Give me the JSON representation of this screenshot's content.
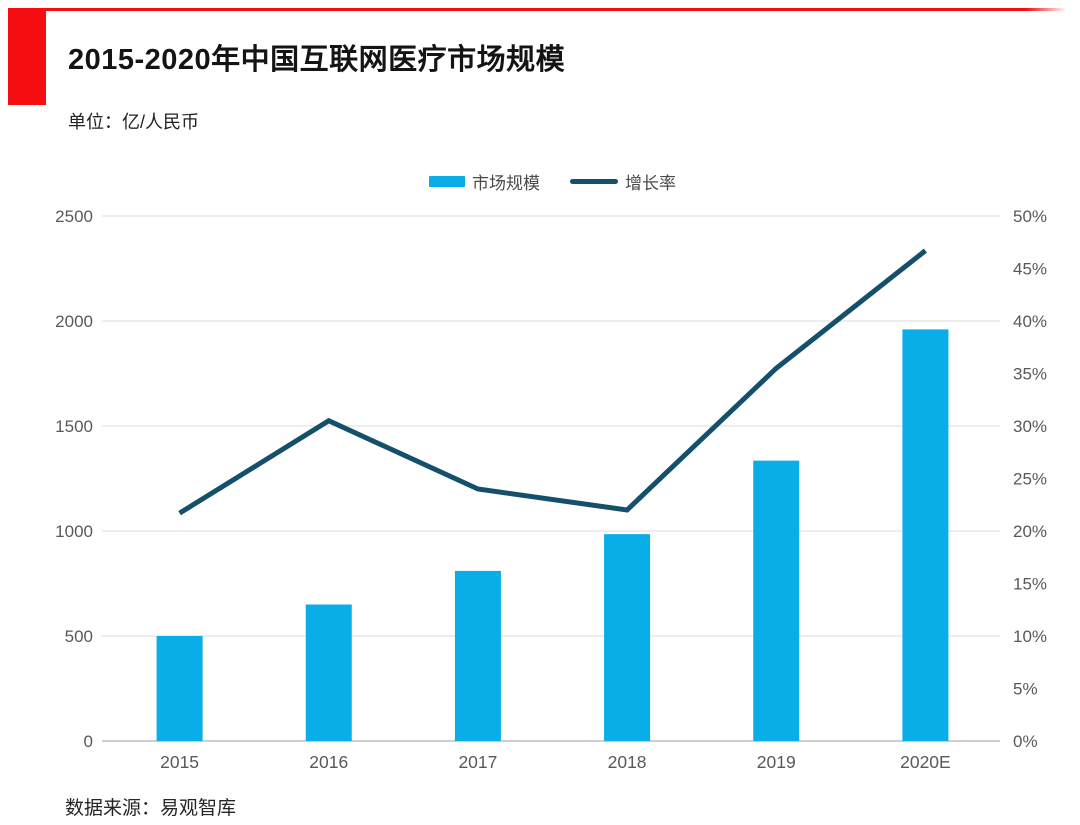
{
  "colors": {
    "accent_red": "#f50d11",
    "bar_blue": "#09ade8",
    "line_teal": "#14506b",
    "gridline": "#e2e2e2",
    "baseline": "#bdbdbd",
    "tick_text": "#595959"
  },
  "header": {
    "title": "2015-2020年中国互联网医疗市场规模",
    "unit_label": "单位：亿/人民币"
  },
  "footer": {
    "source": "数据来源：易观智库"
  },
  "chart_data": {
    "type": "bar+line",
    "title": "2015-2020年中国互联网医疗市场规模",
    "categories": [
      "2015",
      "2016",
      "2017",
      "2018",
      "2019",
      "2020E"
    ],
    "series": [
      {
        "name": "市场规模",
        "type": "bar",
        "axis": "left",
        "values": [
          500,
          650,
          810,
          985,
          1335,
          1960
        ]
      },
      {
        "name": "增长率",
        "type": "line",
        "axis": "right",
        "values": [
          21.7,
          30.5,
          24.0,
          22.0,
          35.5,
          46.7
        ]
      }
    ],
    "left_axis": {
      "ticks": [
        0,
        500,
        1000,
        1500,
        2000,
        2500
      ],
      "min": 0,
      "max": 2500
    },
    "right_axis": {
      "ticks": [
        0,
        5,
        10,
        15,
        20,
        25,
        30,
        35,
        40,
        45,
        50
      ],
      "suffix": "%",
      "min": 0,
      "max": 50
    },
    "grid": "horizontal-only",
    "legend_position": "top-center"
  }
}
